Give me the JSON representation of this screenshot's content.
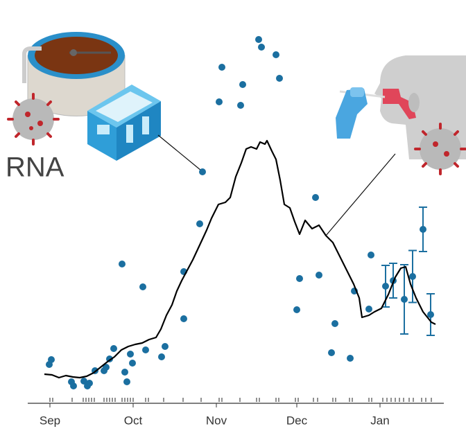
{
  "chart_data": {
    "type": "combo",
    "annotation": "RNA",
    "xlim": [
      -7,
      140
    ],
    "ylim": [
      0,
      110
    ],
    "xticks": [
      {
        "value": 0,
        "label": "Sep"
      },
      {
        "value": 30,
        "label": "Oct"
      },
      {
        "value": 60,
        "label": "Nov"
      },
      {
        "value": 89,
        "label": "Dec"
      },
      {
        "value": 119,
        "label": "Jan"
      }
    ],
    "rug": {
      "color": "#222222",
      "x": [
        0,
        1,
        8,
        12,
        13,
        14,
        15,
        16,
        19.5,
        20.5,
        21.5,
        22.5,
        23.5,
        26,
        27,
        28,
        29,
        30,
        34.5,
        35.5,
        41,
        48,
        54.5,
        61,
        62,
        68.5,
        74.5,
        75.5,
        81.5,
        82.5,
        88.5,
        89.5,
        95,
        96.5,
        102,
        103,
        108,
        109,
        115,
        116,
        120,
        121.5,
        123,
        124.5,
        126,
        127.5,
        129.5,
        131,
        134,
        135.5,
        137.5
      ]
    },
    "series": [
      {
        "type": "scatter",
        "color": "#1b6fa0",
        "x": [
          -0.25,
          0.5,
          7.75,
          8.5,
          12.25,
          13.5,
          14.25,
          16.25,
          19.5,
          20.25,
          21.5,
          23,
          26,
          27,
          27.75,
          29,
          29.75,
          33.5,
          34.5,
          40.25,
          41.5,
          48.25,
          48.25,
          54,
          55,
          61,
          62,
          68.75,
          69.5,
          75.25,
          76.25,
          81.5,
          82.75,
          89,
          90,
          95.75,
          97,
          101.5,
          102.75,
          108.25,
          109.75,
          115,
          115.75
        ],
        "values": [
          11.2,
          12.6,
          6.2,
          5,
          6.4,
          5,
          5.8,
          9.4,
          9.4,
          10.4,
          12.8,
          15.8,
          40.2,
          9,
          6.2,
          14.2,
          11.6,
          33.6,
          15.4,
          13.4,
          16.4,
          24.4,
          38,
          51.8,
          66.8,
          87,
          97,
          86,
          92,
          105,
          102.8,
          100.6,
          93.8,
          27,
          36,
          59.4,
          37,
          14.6,
          23,
          13,
          32.4,
          27.2,
          42.8
        ]
      },
      {
        "type": "errorbar",
        "color": "#1b6fa0",
        "x": [
          121,
          123.75,
          127.75,
          130.75,
          134.5,
          137.25
        ],
        "values": [
          33.8,
          35.4,
          30,
          36.6,
          50.2,
          25.6
        ],
        "errors": [
          6,
          5,
          10,
          7.5,
          6.4,
          6
        ]
      },
      {
        "type": "line",
        "color": "#000000",
        "x": [
          -2,
          0.75,
          3.25,
          5.75,
          8.25,
          10.75,
          13.25,
          15.75,
          18.25,
          20.75,
          23.25,
          25.75,
          28.25,
          30.75,
          33.25,
          35.75,
          38.25,
          40,
          42,
          44,
          45.75,
          47.5,
          49.5,
          51.5,
          53.25,
          55,
          56.5,
          58.25,
          60.75,
          63.25,
          65,
          67,
          69,
          70.75,
          72.5,
          74.5,
          75.75,
          77.5,
          78.25,
          80,
          81.5,
          83,
          84.5,
          86.5,
          88.25,
          90,
          92,
          94.5,
          97,
          99.5,
          102,
          104.5,
          107,
          109.5,
          111.5,
          112.5,
          115,
          117,
          119.5,
          122,
          124.5,
          126.5,
          128.25,
          130,
          132,
          134.5,
          137.5,
          139
        ],
        "values": [
          8.4,
          8.2,
          7.4,
          8,
          7.6,
          7.4,
          7.8,
          8.8,
          10.4,
          12,
          13.4,
          15.4,
          16.4,
          17,
          17.4,
          18.4,
          19,
          21.4,
          25.4,
          28.4,
          32.4,
          35.4,
          38.4,
          41.4,
          44.4,
          47.4,
          50,
          53.4,
          57.4,
          58,
          59.4,
          65.4,
          69.4,
          73.4,
          74,
          73.4,
          75.4,
          74.8,
          75.8,
          72.8,
          70.4,
          64.4,
          57.4,
          56.4,
          52.4,
          48.8,
          52.8,
          50.4,
          51.4,
          48.4,
          46.4,
          42.4,
          38.4,
          34.4,
          30.4,
          24.8,
          25.4,
          26.4,
          27.4,
          31.4,
          36.4,
          39,
          39.4,
          34.4,
          30.4,
          26.4,
          23.4,
          22.8
        ]
      }
    ]
  }
}
